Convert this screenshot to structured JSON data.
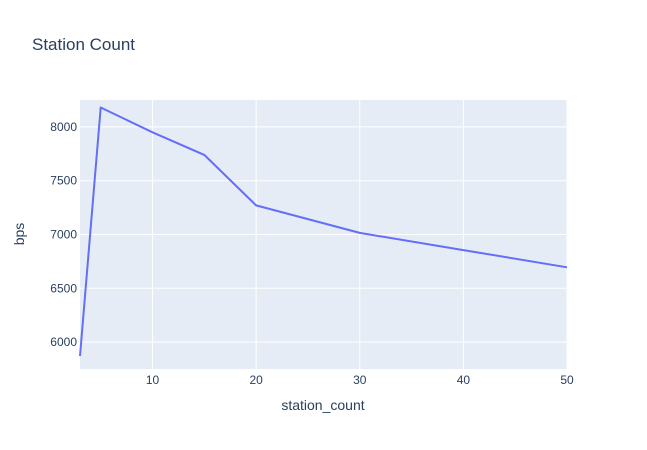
{
  "chart_data": {
    "type": "line",
    "title": "Station Count",
    "xlabel": "station_count",
    "ylabel": "bps",
    "xlim": [
      3,
      50
    ],
    "ylim": [
      5750,
      8250
    ],
    "x_ticks": [
      10,
      20,
      30,
      40,
      50
    ],
    "y_ticks": [
      6000,
      6500,
      7000,
      7500,
      8000
    ],
    "grid": true,
    "legend": "none",
    "colors": {
      "line": "#636efa",
      "plot_bg": "#e5ecf6",
      "grid": "#ffffff",
      "text": "#2a3f5f"
    },
    "series": [
      {
        "x": [
          3,
          5,
          10,
          15,
          20,
          30,
          40,
          50
        ],
        "y": [
          5870,
          8180,
          7950,
          7740,
          7270,
          7015,
          6855,
          6695
        ]
      }
    ]
  }
}
